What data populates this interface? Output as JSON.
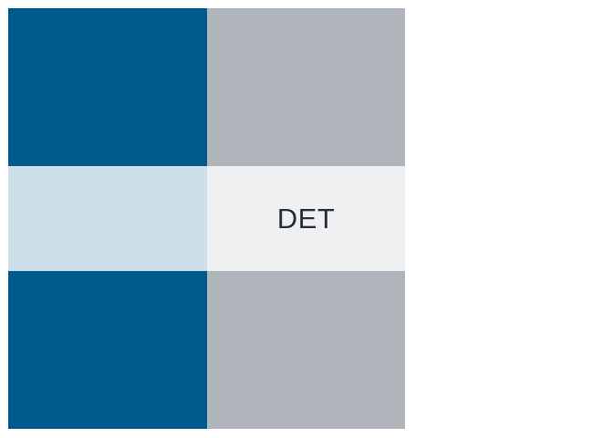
{
  "cells": [
    {
      "id": "r1c1",
      "color": "#005a8e",
      "label": ""
    },
    {
      "id": "r1c2",
      "color": "#afb5bb",
      "label": ""
    },
    {
      "id": "r2c1",
      "color": "#cedfe9",
      "label": ""
    },
    {
      "id": "r2c2",
      "color": "#eff0f2",
      "label": "DET"
    },
    {
      "id": "r3c1",
      "color": "#005a8e",
      "label": ""
    },
    {
      "id": "r3c2",
      "color": "#afb5bb",
      "label": ""
    }
  ]
}
